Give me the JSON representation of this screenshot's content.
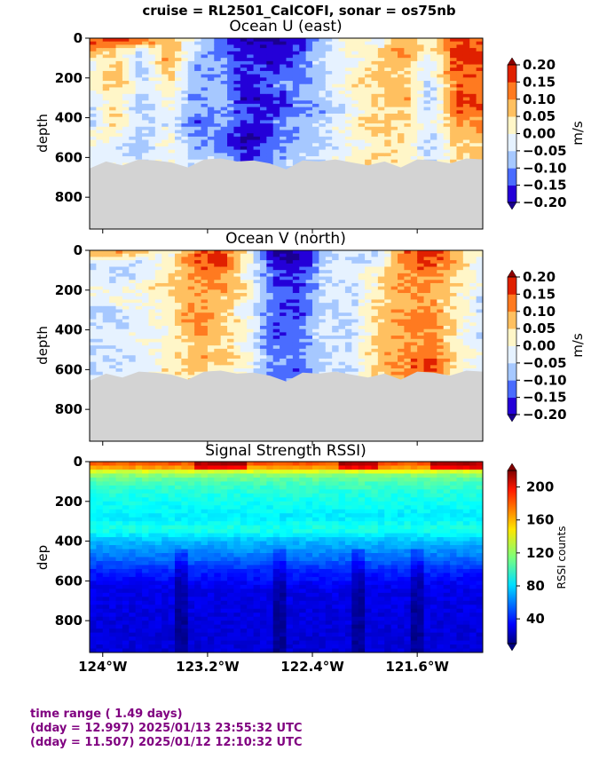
{
  "suptitle": "cruise = RL2501_CalCOFI,  sonar = os75nb",
  "footer": {
    "line1": "time range ( 1.49 days)",
    "line2": "(dday = 12.997) 2025/01/13 23:55:32 UTC",
    "line3": "(dday = 11.507) 2025/01/12 12:10:32 UTC"
  },
  "chart_data": [
    {
      "type": "heatmap",
      "title": "Ocean U (east)",
      "ylabel": "depth",
      "ylim": [
        960,
        0
      ],
      "yticks": [
        "0",
        "200",
        "400",
        "600",
        "800"
      ],
      "xlim": [
        -124.1,
        -121.1
      ],
      "xticks": [
        -124.0,
        -123.2,
        -122.4,
        -121.6
      ],
      "colorbar": {
        "label": "m/s",
        "levels": [
          -0.2,
          -0.15,
          -0.1,
          -0.05,
          0.0,
          0.05,
          0.1,
          0.15,
          0.2
        ],
        "ticklabels": [
          "0.20",
          "0.15",
          "0.10",
          "0.05",
          "0.00",
          "−0.05",
          "−0.10",
          "−0.15",
          "−0.20"
        ],
        "colors": [
          "#2400d8",
          "#4a6cff",
          "#a6c8ff",
          "#e6f2ff",
          "#fff6c8",
          "#ffc060",
          "#ff7a20",
          "#e02000"
        ],
        "over": "#8c0000",
        "under": "#1a0090"
      },
      "profile": [
        {
          "x": -124.1,
          "values": [
            0.15,
            0.12,
            -0.03,
            0.02,
            0.0,
            -0.06,
            -0.04,
            -0.08,
            0.03,
            0.02,
            -0.05,
            -0.02
          ]
        },
        {
          "x": -123.9,
          "values": [
            0.18,
            0.05,
            0.06,
            0.08,
            0.07,
            0.03,
            0.05,
            0.06,
            0.02,
            -0.04,
            -0.02,
            0.01
          ]
        },
        {
          "x": -123.7,
          "values": [
            0.16,
            -0.04,
            -0.06,
            -0.08,
            -0.02,
            -0.07,
            -0.09,
            -0.05,
            -0.08,
            -0.06,
            -0.04,
            -0.03
          ]
        },
        {
          "x": -123.5,
          "values": [
            0.08,
            0.09,
            0.1,
            0.07,
            0.04,
            0.03,
            0.02,
            -0.03,
            0.0,
            0.01,
            -0.02,
            0.03
          ]
        },
        {
          "x": -123.3,
          "values": [
            -0.02,
            -0.05,
            -0.08,
            -0.1,
            -0.07,
            -0.12,
            -0.09,
            -0.14,
            -0.1,
            -0.08,
            -0.05,
            -0.06
          ]
        },
        {
          "x": -123.1,
          "values": [
            -0.15,
            -0.13,
            -0.09,
            -0.11,
            -0.08,
            -0.06,
            -0.1,
            -0.07,
            -0.09,
            -0.12,
            -0.06,
            -0.05
          ]
        },
        {
          "x": -122.9,
          "values": [
            -0.22,
            -0.18,
            -0.14,
            -0.16,
            -0.19,
            -0.2,
            -0.15,
            -0.18,
            -0.21,
            -0.2,
            -0.17,
            -0.19
          ]
        },
        {
          "x": -122.7,
          "values": [
            -0.21,
            -0.17,
            -0.2,
            -0.14,
            -0.12,
            -0.16,
            -0.18,
            -0.12,
            -0.14,
            -0.13,
            -0.1,
            -0.08
          ]
        },
        {
          "x": -122.5,
          "values": [
            -0.19,
            -0.16,
            -0.12,
            -0.14,
            -0.11,
            -0.09,
            -0.12,
            -0.08,
            -0.1,
            -0.07,
            -0.05,
            -0.06
          ]
        },
        {
          "x": -122.3,
          "values": [
            -0.06,
            -0.05,
            -0.03,
            -0.07,
            -0.04,
            -0.06,
            -0.08,
            -0.05,
            -0.04,
            -0.06,
            -0.03,
            -0.07
          ]
        },
        {
          "x": -122.1,
          "values": [
            0.05,
            0.03,
            -0.02,
            0.02,
            0.04,
            0.01,
            -0.03,
            0.03,
            0.02,
            -0.02,
            0.03,
            0.05
          ]
        },
        {
          "x": -121.9,
          "values": [
            -0.04,
            0.02,
            0.05,
            0.07,
            0.03,
            0.06,
            0.04,
            0.08,
            0.05,
            0.03,
            0.06,
            0.02
          ]
        },
        {
          "x": -121.7,
          "values": [
            0.1,
            0.12,
            0.09,
            0.06,
            0.08,
            0.1,
            0.07,
            0.04,
            0.06,
            0.03,
            0.04,
            0.02
          ]
        },
        {
          "x": -121.5,
          "values": [
            0.04,
            0.02,
            -0.05,
            -0.03,
            -0.06,
            -0.08,
            -0.07,
            -0.04,
            -0.05,
            -0.07,
            -0.06,
            -0.04
          ]
        },
        {
          "x": -121.3,
          "values": [
            0.17,
            0.18,
            0.16,
            0.15,
            0.13,
            0.17,
            0.14,
            0.11,
            0.08,
            0.06,
            0.05,
            0.04
          ]
        },
        {
          "x": -121.1,
          "values": [
            0.13,
            0.15,
            0.19,
            0.14,
            0.12,
            0.16,
            0.13,
            0.1,
            0.09,
            0.07,
            0.06,
            0.05
          ]
        }
      ]
    },
    {
      "type": "heatmap",
      "title": "Ocean V (north)",
      "ylabel": "depth",
      "ylim": [
        960,
        0
      ],
      "yticks": [
        "0",
        "200",
        "400",
        "600",
        "800"
      ],
      "xlim": [
        -124.1,
        -121.1
      ],
      "xticks": [
        -124.0,
        -123.2,
        -122.4,
        -121.6
      ],
      "colorbar": {
        "label": "m/s",
        "levels": [
          -0.2,
          -0.15,
          -0.1,
          -0.05,
          0.0,
          0.05,
          0.1,
          0.15,
          0.2
        ],
        "ticklabels": [
          "0.20",
          "0.15",
          "0.10",
          "0.05",
          "0.00",
          "−0.05",
          "−0.10",
          "−0.15",
          "−0.20"
        ],
        "colors": [
          "#2400d8",
          "#4a6cff",
          "#a6c8ff",
          "#e6f2ff",
          "#fff6c8",
          "#ffc060",
          "#ff7a20",
          "#e02000"
        ],
        "over": "#8c0000",
        "under": "#1a0090"
      },
      "profile": [
        {
          "x": -124.1,
          "values": [
            0.12,
            -0.04,
            -0.03,
            0.02,
            -0.02,
            -0.06,
            -0.04,
            -0.03,
            -0.05,
            -0.02,
            -0.06,
            -0.03
          ]
        },
        {
          "x": -123.9,
          "values": [
            0.14,
            -0.02,
            -0.06,
            -0.03,
            0.02,
            -0.05,
            -0.07,
            -0.02,
            -0.04,
            -0.05,
            -0.03,
            -0.02
          ]
        },
        {
          "x": -123.7,
          "values": [
            0.1,
            -0.06,
            -0.05,
            0.03,
            -0.03,
            0.01,
            -0.04,
            -0.02,
            0.0,
            -0.03,
            -0.02,
            -0.04
          ]
        },
        {
          "x": -123.5,
          "values": [
            -0.03,
            0.02,
            0.03,
            0.06,
            0.04,
            0.02,
            0.03,
            0.01,
            0.03,
            0.02,
            0.04,
            0.01
          ]
        },
        {
          "x": -123.3,
          "values": [
            0.12,
            0.14,
            0.12,
            0.1,
            0.08,
            0.11,
            0.13,
            0.09,
            0.07,
            0.09,
            0.06,
            0.05
          ]
        },
        {
          "x": -123.1,
          "values": [
            0.17,
            0.18,
            0.13,
            0.12,
            0.07,
            0.09,
            0.06,
            0.08,
            0.05,
            0.07,
            0.04,
            0.03
          ]
        },
        {
          "x": -122.9,
          "values": [
            0.03,
            0.02,
            -0.03,
            0.05,
            0.03,
            -0.04,
            0.02,
            0.0,
            -0.02,
            0.03,
            0.01,
            0.02
          ]
        },
        {
          "x": -122.7,
          "values": [
            -0.22,
            -0.17,
            -0.13,
            -0.15,
            -0.12,
            -0.14,
            -0.13,
            -0.15,
            -0.12,
            -0.11,
            -0.12,
            -0.13
          ]
        },
        {
          "x": -122.5,
          "values": [
            -0.21,
            -0.19,
            -0.16,
            -0.17,
            -0.14,
            -0.15,
            -0.12,
            -0.13,
            -0.11,
            -0.12,
            -0.14,
            -0.11
          ]
        },
        {
          "x": -122.3,
          "values": [
            -0.08,
            -0.06,
            -0.04,
            -0.05,
            -0.03,
            -0.06,
            -0.04,
            -0.02,
            -0.05,
            -0.03,
            -0.04,
            -0.06
          ]
        },
        {
          "x": -122.1,
          "values": [
            -0.03,
            -0.05,
            -0.02,
            -0.04,
            -0.06,
            -0.03,
            -0.05,
            -0.07,
            -0.04,
            -0.03,
            -0.05,
            -0.02
          ]
        },
        {
          "x": -121.9,
          "values": [
            -0.05,
            -0.04,
            0.02,
            0.03,
            0.04,
            0.07,
            0.06,
            0.05,
            0.08,
            0.06,
            0.07,
            0.04
          ]
        },
        {
          "x": -121.7,
          "values": [
            0.13,
            0.12,
            0.1,
            0.11,
            0.09,
            0.08,
            0.1,
            0.11,
            0.09,
            0.12,
            0.1,
            0.08
          ]
        },
        {
          "x": -121.5,
          "values": [
            0.2,
            0.16,
            0.13,
            0.11,
            0.09,
            0.12,
            0.14,
            0.1,
            0.12,
            0.16,
            0.18,
            0.09
          ]
        },
        {
          "x": -121.3,
          "values": [
            0.06,
            0.08,
            0.05,
            0.04,
            0.03,
            0.02,
            0.04,
            0.02,
            0.03,
            0.04,
            0.02,
            0.01
          ]
        },
        {
          "x": -121.1,
          "values": [
            -0.02,
            -0.04,
            -0.03,
            -0.02,
            -0.05,
            -0.04,
            -0.03,
            -0.05,
            -0.04,
            -0.02,
            -0.03,
            -0.04
          ]
        }
      ]
    },
    {
      "type": "heatmap",
      "title": "Signal Strength RSSI)",
      "ylabel": "dep",
      "ylim": [
        960,
        0
      ],
      "yticks": [
        "0",
        "200",
        "400",
        "600",
        "800"
      ],
      "xlim": [
        -124.1,
        -121.1
      ],
      "xticks": [
        -124.0,
        -123.2,
        -122.4,
        -121.6
      ],
      "xticklabels": [
        "124°W",
        "123.2°W",
        "122.4°W",
        "121.6°W"
      ],
      "colorbar": {
        "label": "RSSI counts",
        "range": [
          10,
          220
        ],
        "ticklabels": [
          "200",
          "160",
          "120",
          "80",
          "40"
        ],
        "tickvalues": [
          200,
          160,
          120,
          80,
          40
        ]
      },
      "depth_profile": [
        {
          "depth": 20,
          "rssi": 175
        },
        {
          "depth": 60,
          "rssi": 120
        },
        {
          "depth": 100,
          "rssi": 105
        },
        {
          "depth": 160,
          "rssi": 95
        },
        {
          "depth": 220,
          "rssi": 90
        },
        {
          "depth": 280,
          "rssi": 85
        },
        {
          "depth": 340,
          "rssi": 95
        },
        {
          "depth": 400,
          "rssi": 75
        },
        {
          "depth": 480,
          "rssi": 60
        },
        {
          "depth": 560,
          "rssi": 42
        },
        {
          "depth": 640,
          "rssi": 32
        },
        {
          "depth": 760,
          "rssi": 30
        },
        {
          "depth": 960,
          "rssi": 28
        }
      ]
    }
  ]
}
